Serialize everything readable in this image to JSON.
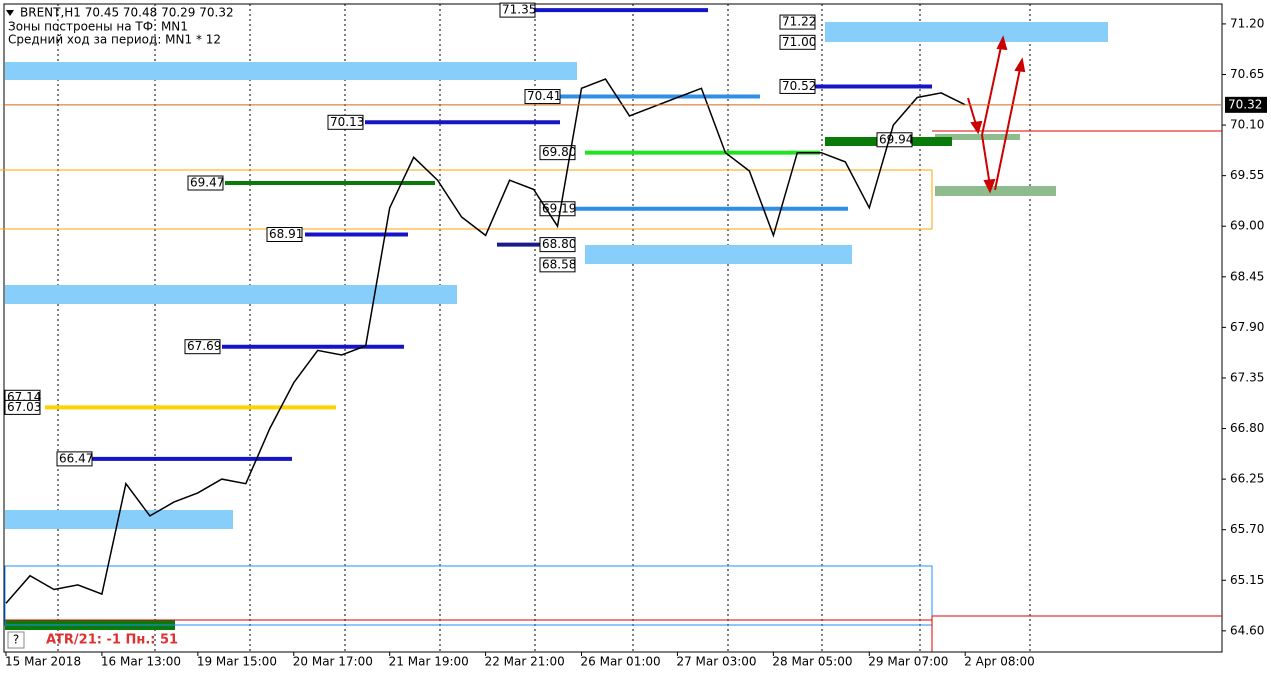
{
  "chart_data": {
    "type": "line",
    "header": [
      "BRENT,H1  70.45 70.48 70.29 70.32",
      "Зоны построены на ТФ: MN1",
      "Средний ход за период: MN1 * 12"
    ],
    "footer": {
      "indicator": "ATR/21: -1  Пн.: 51",
      "help": "?"
    },
    "categories": [
      "15 Mar 2018",
      null,
      null,
      null,
      "16 Mar 13:00",
      null,
      null,
      null,
      "19 Mar 15:00",
      null,
      null,
      null,
      "20 Mar 17:00",
      null,
      null,
      null,
      "21 Mar 19:00",
      null,
      null,
      null,
      "22 Mar 21:00",
      null,
      null,
      null,
      "26 Mar 01:00",
      null,
      null,
      null,
      "27 Mar 03:00",
      null,
      null,
      null,
      "28 Mar 05:00",
      null,
      null,
      null,
      "29 Mar 07:00",
      null,
      null,
      null,
      "2 Apr 08:00"
    ],
    "series": [
      {
        "name": "BRENT,H1",
        "color": "#000000",
        "values": [
          64.9,
          65.2,
          65.05,
          65.1,
          65.0,
          66.2,
          65.85,
          66.0,
          66.1,
          66.25,
          66.2,
          66.8,
          67.3,
          67.65,
          67.6,
          67.7,
          69.2,
          69.75,
          69.5,
          69.1,
          68.9,
          69.5,
          69.4,
          69.0,
          70.5,
          70.6,
          70.2,
          70.3,
          70.4,
          70.5,
          69.8,
          69.6,
          68.9,
          69.8,
          69.8,
          69.7,
          69.2,
          70.1,
          70.4,
          70.45,
          70.32
        ]
      }
    ],
    "current_price": 70.32,
    "ylim": [
      64.37,
      71.46
    ],
    "yticks": [
      {
        "value": 71.2,
        "label": "71.20"
      },
      70.65,
      {
        "value": 70.1,
        "label": "70.10"
      },
      69.55,
      {
        "value": 69,
        "label": "69.00"
      },
      68.45,
      {
        "value": 67.9,
        "label": "67.90"
      },
      67.35,
      {
        "value": 66.8,
        "label": "66.80"
      },
      66.25,
      {
        "value": 65.7,
        "label": "65.70"
      },
      65.15,
      {
        "value": 64.6,
        "label": "64.60"
      }
    ],
    "levels": [
      71.35,
      71.22,
      {
        "value": 71,
        "label": "71.00"
      },
      70.52,
      70.41,
      70.13,
      {
        "value": 69.8,
        "label": "69.80"
      },
      69.94,
      69.47,
      69.19,
      68.91,
      {
        "value": 68.8,
        "label": "68.80"
      },
      68.58,
      67.69,
      67.14,
      67.03,
      66.47
    ]
  }
}
